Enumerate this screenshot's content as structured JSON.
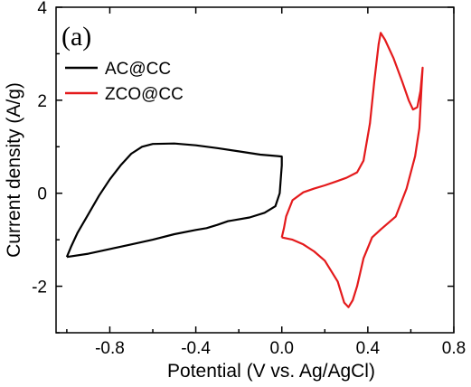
{
  "chart_data": {
    "type": "line",
    "panel_label": "(a)",
    "xlabel": "Potential (V vs. Ag/AgCl)",
    "ylabel": "Current density (A/g)",
    "xlim": [
      -1.05,
      0.8
    ],
    "ylim": [
      -3,
      4
    ],
    "x_ticks": [
      -0.8,
      -0.4,
      0.0,
      0.4,
      0.8
    ],
    "x_tick_labels": [
      "-0.8",
      "-0.4",
      "0.0",
      "0.4",
      "0.8"
    ],
    "y_ticks": [
      -2,
      0,
      2,
      4
    ],
    "y_tick_labels": [
      "-2",
      "0",
      "2",
      "4"
    ],
    "legend_position": "top-left",
    "series": [
      {
        "name": "AC@CC",
        "color": "#000000",
        "points": [
          [
            -1.0,
            -1.37
          ],
          [
            -0.98,
            -1.15
          ],
          [
            -0.95,
            -0.85
          ],
          [
            -0.9,
            -0.45
          ],
          [
            -0.85,
            -0.05
          ],
          [
            -0.8,
            0.3
          ],
          [
            -0.75,
            0.6
          ],
          [
            -0.7,
            0.85
          ],
          [
            -0.65,
            1.0
          ],
          [
            -0.6,
            1.06
          ],
          [
            -0.5,
            1.07
          ],
          [
            -0.4,
            1.03
          ],
          [
            -0.3,
            0.97
          ],
          [
            -0.2,
            0.9
          ],
          [
            -0.1,
            0.83
          ],
          [
            -0.02,
            0.8
          ],
          [
            0.0,
            0.79
          ],
          [
            0.0,
            0.6
          ],
          [
            -0.01,
            0.0
          ],
          [
            -0.03,
            -0.28
          ],
          [
            -0.08,
            -0.42
          ],
          [
            -0.15,
            -0.52
          ],
          [
            -0.25,
            -0.6
          ],
          [
            -0.3,
            -0.68
          ],
          [
            -0.35,
            -0.75
          ],
          [
            -0.4,
            -0.79
          ],
          [
            -0.5,
            -0.88
          ],
          [
            -0.6,
            -1.0
          ],
          [
            -0.7,
            -1.1
          ],
          [
            -0.8,
            -1.2
          ],
          [
            -0.9,
            -1.3
          ],
          [
            -1.0,
            -1.37
          ]
        ]
      },
      {
        "name": "ZCO@CC",
        "color": "#e41a1c",
        "points": [
          [
            0.0,
            -0.95
          ],
          [
            0.01,
            -0.75
          ],
          [
            0.02,
            -0.5
          ],
          [
            0.05,
            -0.15
          ],
          [
            0.1,
            0.02
          ],
          [
            0.15,
            0.1
          ],
          [
            0.2,
            0.17
          ],
          [
            0.25,
            0.25
          ],
          [
            0.3,
            0.33
          ],
          [
            0.35,
            0.45
          ],
          [
            0.38,
            0.7
          ],
          [
            0.41,
            1.5
          ],
          [
            0.43,
            2.4
          ],
          [
            0.45,
            3.2
          ],
          [
            0.46,
            3.45
          ],
          [
            0.48,
            3.3
          ],
          [
            0.52,
            2.9
          ],
          [
            0.56,
            2.4
          ],
          [
            0.59,
            2.0
          ],
          [
            0.61,
            1.8
          ],
          [
            0.63,
            1.85
          ],
          [
            0.645,
            2.2
          ],
          [
            0.655,
            2.7
          ],
          [
            0.65,
            2.3
          ],
          [
            0.64,
            1.4
          ],
          [
            0.62,
            0.8
          ],
          [
            0.58,
            0.1
          ],
          [
            0.53,
            -0.5
          ],
          [
            0.46,
            -0.78
          ],
          [
            0.42,
            -0.95
          ],
          [
            0.38,
            -1.4
          ],
          [
            0.35,
            -2.0
          ],
          [
            0.33,
            -2.3
          ],
          [
            0.31,
            -2.45
          ],
          [
            0.29,
            -2.35
          ],
          [
            0.26,
            -1.9
          ],
          [
            0.2,
            -1.45
          ],
          [
            0.15,
            -1.25
          ],
          [
            0.1,
            -1.1
          ],
          [
            0.05,
            -1.0
          ],
          [
            0.0,
            -0.95
          ]
        ]
      }
    ]
  }
}
